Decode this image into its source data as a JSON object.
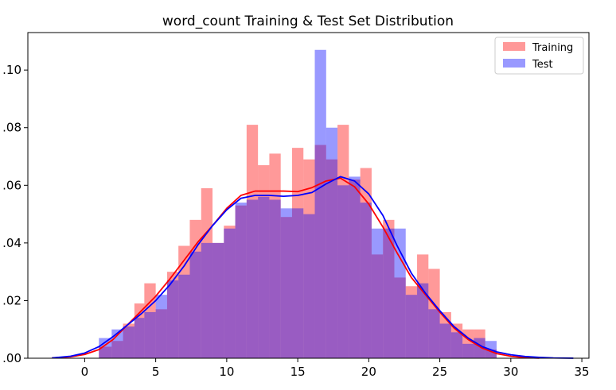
{
  "chart_data": {
    "type": "bar",
    "title": "word_count Training & Test Set Distribution",
    "xlabel": "",
    "ylabel": "",
    "xlim": [
      -4,
      35.5
    ],
    "ylim": [
      0,
      0.113
    ],
    "x_ticks": [
      0,
      5,
      10,
      15,
      20,
      25,
      30,
      35
    ],
    "y_ticks": [
      0.0,
      0.02,
      0.04,
      0.06,
      0.08,
      0.1
    ],
    "y_tick_labels": [
      ".00",
      ".02",
      ".04",
      ".06",
      ".08",
      ".10"
    ],
    "grid": false,
    "legend_position": "top-right",
    "colors": {
      "training": "#ff0000",
      "test": "#0000ff",
      "overlap": "#9955c0"
    },
    "series": [
      {
        "name": "Training",
        "kind": "histogram",
        "bins": [
          {
            "x0": 1.0,
            "x1": 1.9,
            "y": 0.004
          },
          {
            "x0": 1.9,
            "x1": 2.7,
            "y": 0.006
          },
          {
            "x0": 2.7,
            "x1": 3.5,
            "y": 0.012
          },
          {
            "x0": 3.5,
            "x1": 4.2,
            "y": 0.019
          },
          {
            "x0": 4.2,
            "x1": 5.0,
            "y": 0.026
          },
          {
            "x0": 5.0,
            "x1": 5.8,
            "y": 0.017
          },
          {
            "x0": 5.8,
            "x1": 6.6,
            "y": 0.03
          },
          {
            "x0": 6.6,
            "x1": 7.4,
            "y": 0.039
          },
          {
            "x0": 7.4,
            "x1": 8.2,
            "y": 0.048
          },
          {
            "x0": 8.2,
            "x1": 9.0,
            "y": 0.059
          },
          {
            "x0": 9.0,
            "x1": 9.8,
            "y": 0.04
          },
          {
            "x0": 9.8,
            "x1": 10.6,
            "y": 0.046
          },
          {
            "x0": 10.6,
            "x1": 11.4,
            "y": 0.053
          },
          {
            "x0": 11.4,
            "x1": 12.2,
            "y": 0.081
          },
          {
            "x0": 12.2,
            "x1": 13.0,
            "y": 0.067
          },
          {
            "x0": 13.0,
            "x1": 13.8,
            "y": 0.071
          },
          {
            "x0": 13.8,
            "x1": 14.6,
            "y": 0.049
          },
          {
            "x0": 14.6,
            "x1": 15.4,
            "y": 0.073
          },
          {
            "x0": 15.4,
            "x1": 16.2,
            "y": 0.069
          },
          {
            "x0": 16.2,
            "x1": 17.0,
            "y": 0.074
          },
          {
            "x0": 17.0,
            "x1": 17.8,
            "y": 0.069
          },
          {
            "x0": 17.8,
            "x1": 18.6,
            "y": 0.081
          },
          {
            "x0": 18.6,
            "x1": 19.4,
            "y": 0.062
          },
          {
            "x0": 19.4,
            "x1": 20.2,
            "y": 0.066
          },
          {
            "x0": 20.2,
            "x1": 21.0,
            "y": 0.036
          },
          {
            "x0": 21.0,
            "x1": 21.8,
            "y": 0.048
          },
          {
            "x0": 21.8,
            "x1": 22.6,
            "y": 0.028
          },
          {
            "x0": 22.6,
            "x1": 23.4,
            "y": 0.025
          },
          {
            "x0": 23.4,
            "x1": 24.2,
            "y": 0.036
          },
          {
            "x0": 24.2,
            "x1": 25.0,
            "y": 0.031
          },
          {
            "x0": 25.0,
            "x1": 25.8,
            "y": 0.016
          },
          {
            "x0": 25.8,
            "x1": 26.6,
            "y": 0.012
          },
          {
            "x0": 26.6,
            "x1": 27.4,
            "y": 0.01
          },
          {
            "x0": 27.4,
            "x1": 28.2,
            "y": 0.01
          },
          {
            "x0": 28.2,
            "x1": 29.0,
            "y": 0.003
          }
        ],
        "kde": {
          "x": [
            -2.3,
            -1,
            0,
            1,
            2,
            3,
            4,
            5,
            6,
            7,
            8,
            9,
            10,
            11,
            12,
            13,
            14,
            15,
            16,
            17,
            18,
            19,
            20,
            21,
            22,
            23,
            24,
            25,
            26,
            27,
            28,
            29,
            30,
            31,
            32
          ],
          "y": [
            0.0001,
            0.0005,
            0.0013,
            0.003,
            0.0065,
            0.0115,
            0.0165,
            0.0215,
            0.0275,
            0.034,
            0.0405,
            0.046,
            0.052,
            0.0565,
            0.058,
            0.058,
            0.058,
            0.0578,
            0.0592,
            0.0615,
            0.0625,
            0.0595,
            0.0535,
            0.0455,
            0.0365,
            0.028,
            0.022,
            0.016,
            0.0105,
            0.0065,
            0.0035,
            0.0016,
            0.0007,
            0.0002,
            5e-05
          ]
        }
      },
      {
        "name": "Test",
        "kind": "histogram",
        "bins": [
          {
            "x0": 1.0,
            "x1": 1.9,
            "y": 0.007
          },
          {
            "x0": 1.9,
            "x1": 2.7,
            "y": 0.01
          },
          {
            "x0": 2.7,
            "x1": 3.5,
            "y": 0.011
          },
          {
            "x0": 3.5,
            "x1": 4.2,
            "y": 0.014
          },
          {
            "x0": 4.2,
            "x1": 5.0,
            "y": 0.016
          },
          {
            "x0": 5.0,
            "x1": 5.8,
            "y": 0.022
          },
          {
            "x0": 5.8,
            "x1": 6.6,
            "y": 0.027
          },
          {
            "x0": 6.6,
            "x1": 7.4,
            "y": 0.029
          },
          {
            "x0": 7.4,
            "x1": 8.2,
            "y": 0.037
          },
          {
            "x0": 8.2,
            "x1": 9.0,
            "y": 0.04
          },
          {
            "x0": 9.0,
            "x1": 9.8,
            "y": 0.04
          },
          {
            "x0": 9.8,
            "x1": 10.6,
            "y": 0.045
          },
          {
            "x0": 10.6,
            "x1": 11.4,
            "y": 0.054
          },
          {
            "x0": 11.4,
            "x1": 12.2,
            "y": 0.055
          },
          {
            "x0": 12.2,
            "x1": 13.0,
            "y": 0.056
          },
          {
            "x0": 13.0,
            "x1": 13.8,
            "y": 0.055
          },
          {
            "x0": 13.8,
            "x1": 14.6,
            "y": 0.052
          },
          {
            "x0": 14.6,
            "x1": 15.4,
            "y": 0.052
          },
          {
            "x0": 15.4,
            "x1": 16.2,
            "y": 0.05
          },
          {
            "x0": 16.2,
            "x1": 17.0,
            "y": 0.107
          },
          {
            "x0": 17.0,
            "x1": 17.8,
            "y": 0.08
          },
          {
            "x0": 17.8,
            "x1": 18.6,
            "y": 0.06
          },
          {
            "x0": 18.6,
            "x1": 19.4,
            "y": 0.063
          },
          {
            "x0": 19.4,
            "x1": 20.2,
            "y": 0.054
          },
          {
            "x0": 20.2,
            "x1": 21.0,
            "y": 0.045
          },
          {
            "x0": 21.0,
            "x1": 21.8,
            "y": 0.045
          },
          {
            "x0": 21.8,
            "x1": 22.6,
            "y": 0.045
          },
          {
            "x0": 22.6,
            "x1": 23.4,
            "y": 0.022
          },
          {
            "x0": 23.4,
            "x1": 24.2,
            "y": 0.026
          },
          {
            "x0": 24.2,
            "x1": 25.0,
            "y": 0.017
          },
          {
            "x0": 25.0,
            "x1": 25.8,
            "y": 0.012
          },
          {
            "x0": 25.8,
            "x1": 26.6,
            "y": 0.009
          },
          {
            "x0": 26.6,
            "x1": 27.4,
            "y": 0.005
          },
          {
            "x0": 27.4,
            "x1": 28.2,
            "y": 0.007
          },
          {
            "x0": 28.2,
            "x1": 29.0,
            "y": 0.006
          }
        ],
        "kde": {
          "x": [
            -2.3,
            -1,
            0,
            1,
            2,
            3,
            4,
            5,
            6,
            7,
            8,
            9,
            10,
            11,
            12,
            13,
            14,
            15,
            16,
            17,
            18,
            19,
            20,
            21,
            22,
            23,
            24,
            25,
            26,
            27,
            28,
            29,
            30,
            31,
            32,
            33,
            34.4
          ],
          "y": [
            0.0001,
            0.0007,
            0.0018,
            0.004,
            0.0075,
            0.0115,
            0.0155,
            0.02,
            0.0255,
            0.032,
            0.0395,
            0.046,
            0.0515,
            0.0555,
            0.0565,
            0.0565,
            0.0562,
            0.0565,
            0.0575,
            0.0605,
            0.063,
            0.0615,
            0.057,
            0.0495,
            0.039,
            0.0295,
            0.0225,
            0.0165,
            0.011,
            0.007,
            0.004,
            0.0022,
            0.0012,
            0.0006,
            0.0003,
            0.0001,
            2e-05
          ]
        }
      }
    ]
  }
}
